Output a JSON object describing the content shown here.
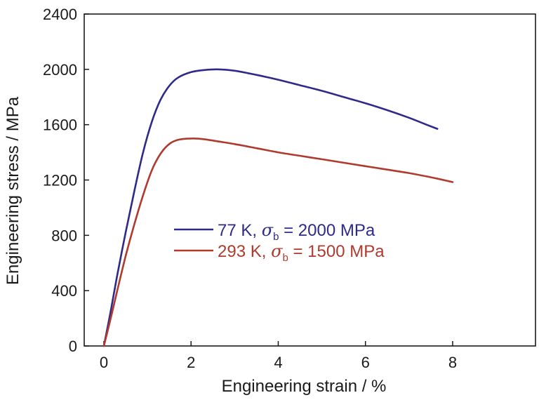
{
  "chart_data": {
    "type": "line",
    "xlabel": "Engineering strain / %",
    "ylabel": "Engineering stress / MPa",
    "xlim": [
      -0.45,
      9.9
    ],
    "ylim": [
      0,
      2400
    ],
    "xticks": [
      0,
      2,
      4,
      6,
      8
    ],
    "yticks": [
      0,
      400,
      800,
      1200,
      1600,
      2000,
      2400
    ],
    "xtick_labels": [
      "0",
      "2",
      "4",
      "6",
      "8"
    ],
    "ytick_labels": [
      "0",
      "400",
      "800",
      "1200",
      "1600",
      "2000",
      "2400"
    ],
    "grid": false,
    "legend_position": "center",
    "series": [
      {
        "name": "77 K, σb = 2000 MPa",
        "legend_prefix": "77 K, ",
        "legend_sigma": "σ",
        "legend_sub": "b",
        "legend_suffix": " = 2000 MPa",
        "color": "#2e2a8a",
        "x": [
          0.0,
          0.15,
          0.3,
          0.5,
          0.7,
          0.9,
          1.1,
          1.3,
          1.5,
          1.7,
          2.0,
          2.3,
          2.6,
          3.0,
          3.5,
          4.0,
          4.5,
          5.0,
          5.5,
          6.0,
          6.5,
          7.0,
          7.4,
          7.65
        ],
        "y": [
          0,
          240,
          500,
          820,
          1120,
          1400,
          1620,
          1780,
          1880,
          1940,
          1980,
          1995,
          2000,
          1990,
          1960,
          1925,
          1885,
          1845,
          1800,
          1755,
          1705,
          1650,
          1600,
          1570
        ]
      },
      {
        "name": "293 K, σb = 1500 MPa",
        "legend_prefix": "293 K, ",
        "legend_sigma": "σ",
        "legend_sub": "b",
        "legend_suffix": " = 1500 MPa",
        "color": "#b03a2e",
        "x": [
          0.0,
          0.15,
          0.3,
          0.5,
          0.7,
          0.9,
          1.1,
          1.3,
          1.5,
          1.7,
          2.0,
          2.3,
          2.6,
          3.0,
          3.5,
          4.0,
          4.5,
          5.0,
          5.5,
          6.0,
          6.5,
          7.0,
          7.5,
          8.0
        ],
        "y": [
          0,
          190,
          390,
          650,
          880,
          1090,
          1270,
          1390,
          1460,
          1490,
          1500,
          1495,
          1480,
          1460,
          1430,
          1400,
          1375,
          1350,
          1325,
          1300,
          1275,
          1250,
          1220,
          1185
        ]
      }
    ]
  }
}
